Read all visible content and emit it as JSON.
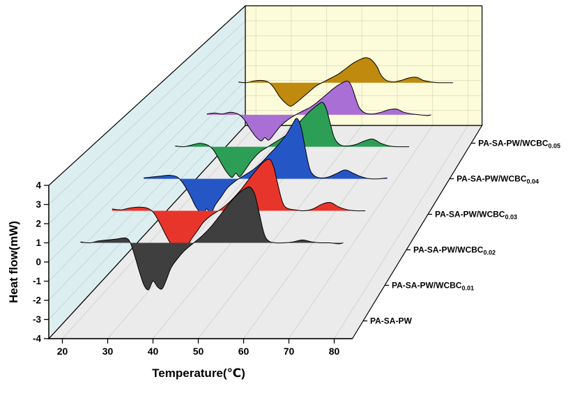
{
  "figure": {
    "background": "#ffffff",
    "walls": {
      "left_fill": "#ddeef0",
      "back_fill": "#fcfcda",
      "floor_fill": "#ebebeb",
      "edge_color": "#000000",
      "grid_color": "rgba(0,0,0,0.10)"
    }
  },
  "chart_data": {
    "type": "area",
    "chart_style": "3d-waterfall-dsc",
    "title": "",
    "xlabel": "Temperature(℃)",
    "ylabel": "Heat flow(mW)",
    "x_ticks": [
      20,
      30,
      40,
      50,
      60,
      70,
      80
    ],
    "y_ticks": [
      -4,
      -3,
      -2,
      -1,
      0,
      1,
      2,
      3,
      4
    ],
    "xlim": [
      20,
      80
    ],
    "ylim": [
      -4,
      4
    ],
    "baseline": 1,
    "layout": {
      "legend": "right-floor-labels",
      "grid": true,
      "projection": {
        "t_min": 17,
        "t_max": 84,
        "v_min": -4,
        "v_max": 4,
        "depth_slots": 6
      }
    },
    "series": [
      {
        "label": "PA-SA-PW",
        "label_sub": "",
        "color": "#3f3f3f",
        "points": [
          [
            24,
            1.05
          ],
          [
            26,
            1.0
          ],
          [
            28,
            1.1
          ],
          [
            30,
            1.15
          ],
          [
            32,
            1.2
          ],
          [
            34,
            1.25
          ],
          [
            35,
            1.0
          ],
          [
            36,
            0.3
          ],
          [
            37,
            -0.5
          ],
          [
            38,
            -1.2
          ],
          [
            39,
            -1.45
          ],
          [
            40,
            -1.0
          ],
          [
            41,
            -1.3
          ],
          [
            42,
            -1.4
          ],
          [
            43,
            -0.9
          ],
          [
            44,
            -0.3
          ],
          [
            45.5,
            0.2
          ],
          [
            47,
            0.6
          ],
          [
            49,
            1.0
          ],
          [
            51,
            1.4
          ],
          [
            53,
            1.9
          ],
          [
            55,
            2.5
          ],
          [
            57,
            3.1
          ],
          [
            59,
            3.6
          ],
          [
            60.5,
            3.85
          ],
          [
            61.5,
            3.9
          ],
          [
            62.5,
            3.5
          ],
          [
            63.5,
            2.5
          ],
          [
            64.5,
            1.5
          ],
          [
            65.5,
            1.1
          ],
          [
            67,
            1.0
          ],
          [
            69,
            1.0
          ],
          [
            71,
            1.05
          ],
          [
            73,
            1.15
          ],
          [
            75,
            1.05
          ],
          [
            77,
            1.0
          ],
          [
            79,
            1.0
          ],
          [
            81,
            0.95
          ],
          [
            82,
            1.0
          ]
        ]
      },
      {
        "label": "PA-SA-PW/WCBC",
        "label_sub": "0.01",
        "color": "#e8352b",
        "points": [
          [
            24,
            1.1
          ],
          [
            26,
            1.05
          ],
          [
            28,
            1.15
          ],
          [
            30,
            1.2
          ],
          [
            32,
            1.15
          ],
          [
            33.5,
            0.9
          ],
          [
            35,
            0.3
          ],
          [
            36.5,
            -0.4
          ],
          [
            38,
            -1.0
          ],
          [
            39,
            -1.2
          ],
          [
            40,
            -0.85
          ],
          [
            41,
            -1.05
          ],
          [
            42,
            -0.6
          ],
          [
            43.5,
            -0.1
          ],
          [
            45,
            0.4
          ],
          [
            47,
            0.8
          ],
          [
            49,
            1.1
          ],
          [
            51,
            1.5
          ],
          [
            53,
            2.0
          ],
          [
            55,
            2.6
          ],
          [
            57,
            3.2
          ],
          [
            58.5,
            3.6
          ],
          [
            60,
            3.8
          ],
          [
            61,
            3.4
          ],
          [
            62,
            2.4
          ],
          [
            63,
            1.5
          ],
          [
            64,
            1.15
          ],
          [
            66,
            1.05
          ],
          [
            68,
            1.0
          ],
          [
            70,
            1.1
          ],
          [
            72,
            1.35
          ],
          [
            74,
            1.45
          ],
          [
            76,
            1.2
          ],
          [
            78,
            1.05
          ],
          [
            80,
            1.0
          ],
          [
            82,
            1.0
          ]
        ]
      },
      {
        "label": "PA-SA-PW/WCBC",
        "label_sub": "0.02",
        "color": "#2456c6",
        "points": [
          [
            24,
            1.05
          ],
          [
            26,
            1.1
          ],
          [
            28,
            1.15
          ],
          [
            30,
            1.2
          ],
          [
            32,
            1.1
          ],
          [
            33.5,
            0.7
          ],
          [
            35,
            0.1
          ],
          [
            36.5,
            -0.6
          ],
          [
            38,
            -1.0
          ],
          [
            39,
            -0.7
          ],
          [
            40,
            -0.95
          ],
          [
            41,
            -0.5
          ],
          [
            42.5,
            0.0
          ],
          [
            44,
            0.5
          ],
          [
            46,
            0.9
          ],
          [
            48,
            1.2
          ],
          [
            50,
            1.5
          ],
          [
            52,
            1.9
          ],
          [
            54,
            2.4
          ],
          [
            56,
            2.9
          ],
          [
            58,
            3.5
          ],
          [
            59.5,
            4.1
          ],
          [
            60.5,
            4.4
          ],
          [
            61.5,
            3.9
          ],
          [
            62.5,
            2.7
          ],
          [
            63.5,
            1.6
          ],
          [
            64.5,
            1.2
          ],
          [
            66,
            1.05
          ],
          [
            68,
            1.1
          ],
          [
            70,
            1.3
          ],
          [
            72,
            1.5
          ],
          [
            74,
            1.3
          ],
          [
            76,
            1.1
          ],
          [
            78,
            1.0
          ],
          [
            80,
            1.0
          ],
          [
            82,
            1.05
          ]
        ]
      },
      {
        "label": "PA-SA-PW/WCBC",
        "label_sub": "0.03",
        "color": "#2d9e55",
        "points": [
          [
            24,
            1.05
          ],
          [
            26,
            1.0
          ],
          [
            28,
            1.1
          ],
          [
            30,
            1.2
          ],
          [
            32,
            1.1
          ],
          [
            33.5,
            0.8
          ],
          [
            35,
            0.2
          ],
          [
            36.5,
            -0.4
          ],
          [
            38,
            -0.8
          ],
          [
            39,
            -0.55
          ],
          [
            40,
            -0.75
          ],
          [
            41.5,
            -0.3
          ],
          [
            43,
            0.2
          ],
          [
            45,
            0.7
          ],
          [
            47,
            1.0
          ],
          [
            49,
            1.3
          ],
          [
            51,
            1.6
          ],
          [
            53,
            2.0
          ],
          [
            55,
            2.5
          ],
          [
            57,
            3.0
          ],
          [
            59,
            3.4
          ],
          [
            60.5,
            3.6
          ],
          [
            61.5,
            3.2
          ],
          [
            62.5,
            2.3
          ],
          [
            63.5,
            1.5
          ],
          [
            65,
            1.1
          ],
          [
            67,
            1.05
          ],
          [
            69,
            1.15
          ],
          [
            71,
            1.35
          ],
          [
            73,
            1.45
          ],
          [
            75,
            1.2
          ],
          [
            77,
            1.05
          ],
          [
            79,
            1.0
          ],
          [
            81,
            1.0
          ],
          [
            82,
            1.0
          ]
        ]
      },
      {
        "label": "PA-SA-PW/WCBC",
        "label_sub": "0.04",
        "color": "#a96fd4",
        "points": [
          [
            24,
            1.05
          ],
          [
            26,
            1.1
          ],
          [
            28,
            1.05
          ],
          [
            30,
            1.15
          ],
          [
            32,
            1.05
          ],
          [
            33.5,
            0.75
          ],
          [
            35,
            0.2
          ],
          [
            36.5,
            -0.3
          ],
          [
            38,
            -0.6
          ],
          [
            39,
            -0.4
          ],
          [
            40,
            -0.55
          ],
          [
            41.5,
            -0.15
          ],
          [
            43,
            0.3
          ],
          [
            45,
            0.7
          ],
          [
            47,
            1.0
          ],
          [
            49,
            1.25
          ],
          [
            51,
            1.5
          ],
          [
            53,
            1.85
          ],
          [
            55,
            2.25
          ],
          [
            57,
            2.65
          ],
          [
            59,
            2.95
          ],
          [
            60.5,
            3.05
          ],
          [
            61.5,
            2.7
          ],
          [
            62.5,
            2.0
          ],
          [
            63.5,
            1.4
          ],
          [
            65,
            1.1
          ],
          [
            67,
            1.05
          ],
          [
            69,
            1.15
          ],
          [
            71,
            1.3
          ],
          [
            73,
            1.35
          ],
          [
            75,
            1.15
          ],
          [
            77,
            1.05
          ],
          [
            79,
            1.0
          ],
          [
            81,
            0.95
          ],
          [
            82,
            1.0
          ]
        ]
      },
      {
        "label": "PA-SA-PW/WCBC",
        "label_sub": "0.05",
        "color": "#bf8a0d",
        "points": [
          [
            24,
            1.05
          ],
          [
            26,
            1.0
          ],
          [
            28,
            1.1
          ],
          [
            30,
            1.15
          ],
          [
            32,
            1.05
          ],
          [
            33.5,
            0.7
          ],
          [
            35,
            0.15
          ],
          [
            36.5,
            -0.25
          ],
          [
            38,
            -0.5
          ],
          [
            39.5,
            -0.3
          ],
          [
            41,
            0.0
          ],
          [
            43,
            0.4
          ],
          [
            45,
            0.8
          ],
          [
            47,
            1.05
          ],
          [
            49,
            1.3
          ],
          [
            51,
            1.55
          ],
          [
            53,
            1.9
          ],
          [
            55,
            2.25
          ],
          [
            57,
            2.5
          ],
          [
            58.5,
            2.6
          ],
          [
            60,
            2.45
          ],
          [
            61.5,
            2.0
          ],
          [
            62.5,
            1.5
          ],
          [
            64,
            1.15
          ],
          [
            66,
            1.05
          ],
          [
            68,
            1.15
          ],
          [
            70,
            1.3
          ],
          [
            72,
            1.35
          ],
          [
            74,
            1.15
          ],
          [
            76,
            1.05
          ],
          [
            78,
            1.0
          ],
          [
            80,
            1.0
          ],
          [
            82,
            1.0
          ]
        ]
      }
    ]
  }
}
